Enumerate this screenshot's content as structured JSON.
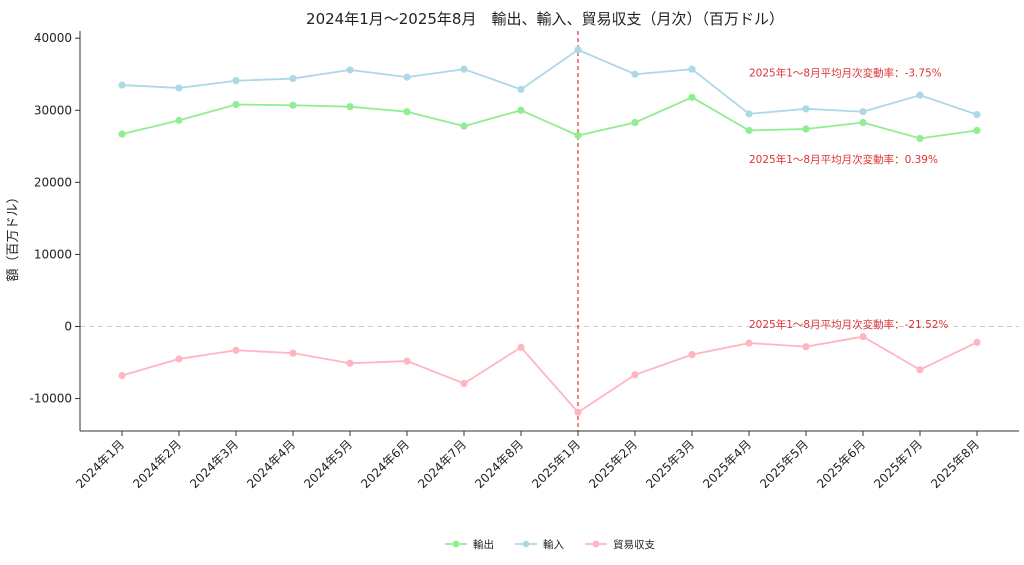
{
  "chart_data": {
    "type": "line",
    "title": "2024年1月～2025年8月　輸出、輸入、貿易収支（月次）（百万ドル）",
    "xlabel": "",
    "ylabel": "額（百万ドル）",
    "categories": [
      "2024年1月",
      "2024年2月",
      "2024年3月",
      "2024年4月",
      "2024年5月",
      "2024年6月",
      "2024年7月",
      "2024年8月",
      "2025年1月",
      "2025年2月",
      "2025年3月",
      "2025年4月",
      "2025年5月",
      "2025年6月",
      "2025年7月",
      "2025年8月"
    ],
    "ylim": [
      -14500,
      41000
    ],
    "yticks": [
      -10000,
      0,
      10000,
      20000,
      30000,
      40000
    ],
    "series": [
      {
        "name": "輸出",
        "color": "#90ee90",
        "values": [
          26700,
          28600,
          30800,
          30700,
          30500,
          29800,
          27800,
          30000,
          26500,
          28300,
          31800,
          27200,
          27400,
          28300,
          26100,
          27200
        ]
      },
      {
        "name": "輸入",
        "color": "#add8e6",
        "values": [
          33500,
          33100,
          34100,
          34400,
          35600,
          34600,
          35700,
          32900,
          38400,
          35000,
          35700,
          29500,
          30200,
          29800,
          32100,
          29400
        ]
      },
      {
        "name": "貿易収支",
        "color": "#ffb6c1",
        "values": [
          -6800,
          -4500,
          -3300,
          -3700,
          -5100,
          -4800,
          -7900,
          -2900,
          -11900,
          -6700,
          -3900,
          -2300,
          -2800,
          -1400,
          -6000,
          -2200
        ]
      }
    ],
    "reference_line": {
      "category_index": 8,
      "color": "#dd3333",
      "style": "dashed"
    },
    "zero_line": true,
    "annotations": [
      {
        "text": "2025年1～8月平均月次変動率：-3.75%",
        "x_index": 11,
        "y": 34700
      },
      {
        "text": "2025年1～8月平均月次変動率：0.39%",
        "x_index": 11,
        "y": 22700
      },
      {
        "text": "2025年1～8月平均月次変動率：-21.52%",
        "x_index": 11,
        "y": -200
      }
    ],
    "annotation_color": "#dd3333",
    "legend_position": "bottom-center",
    "grid": false
  }
}
